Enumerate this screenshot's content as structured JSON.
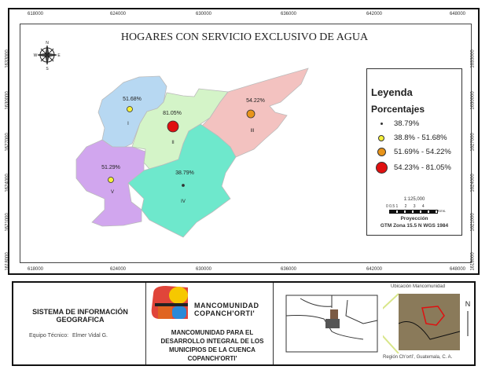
{
  "map": {
    "title": "HOGARES CON SERVICIO EXCLUSIVO DE AGUA",
    "x_ticks": [
      "618000",
      "624000",
      "630000",
      "636000",
      "642000",
      "648000"
    ],
    "y_ticks": [
      "1633000",
      "1630000",
      "1627000",
      "1624000",
      "1621000",
      "1618000"
    ],
    "compass": {
      "n": "N",
      "s": "S",
      "e": "E",
      "w": "W"
    },
    "regions": [
      {
        "id": "I",
        "value": "51.68%",
        "fill": "#b7d8f2",
        "class": "38.8% - 51.68%"
      },
      {
        "id": "II",
        "value": "81.05%",
        "fill": "#d4f4c8",
        "class": "54.23% - 81.05%"
      },
      {
        "id": "III",
        "value": "54.22%",
        "fill": "#f3c2c0",
        "class": "51.69% - 54.22%"
      },
      {
        "id": "IV",
        "value": "38.79%",
        "fill": "#6ee8cc",
        "class": "38.79%"
      },
      {
        "id": "V",
        "value": "51.29%",
        "fill": "#d1a6ee",
        "class": "38.8% - 51.68%"
      }
    ]
  },
  "legend": {
    "title": "Leyenda",
    "subtitle": "Porcentajes",
    "items": [
      {
        "label": "38.79%",
        "color": "#333333"
      },
      {
        "label": "38.8% - 51.68%",
        "color": "#f5f03a"
      },
      {
        "label": "51.69% - 54.22%",
        "color": "#e8941a"
      },
      {
        "label": "54.23% - 81.05%",
        "color": "#e01010"
      }
    ],
    "scale": "1:125,000",
    "scale_ticks": [
      "0",
      "0.5",
      "1",
      "2",
      "3",
      "4"
    ],
    "scale_unit": "Kms.",
    "projection_title": "Proyección",
    "projection": "GTM Zona 15.5 N WGS 1984"
  },
  "footer": {
    "system_title": "SISTEMA DE INFORMACIÓN GEOGRAFICA",
    "team_label": "Equipo Técnico:",
    "team_name": "Elmer Vidal G.",
    "logo_line1": "MANCOMUNIDAD",
    "logo_line2": "COPANCH'ORTI'",
    "org_name": "MANCOMUNIDAD PARA EL DESARROLLO INTEGRAL DE LOS MUNICIPIOS DE LA CUENCA COPANCH'ORTI'",
    "inset_title": "Ubicación Mancomunidad",
    "inset_caption": "Región Ch'ortí', Guatemala, C. A.",
    "inset_north": "N"
  }
}
